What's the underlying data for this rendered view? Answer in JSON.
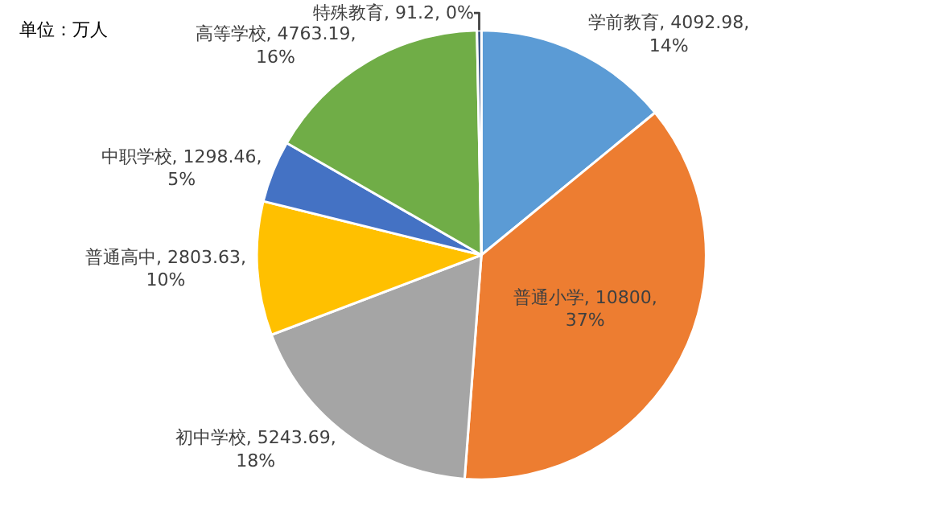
{
  "chart_data": {
    "type": "pie",
    "categories": [
      "学前教育",
      "普通小学",
      "初中学校",
      "普通高中",
      "中职学校",
      "高等学校",
      "特殊教育"
    ],
    "values": [
      4092.98,
      10800,
      5243.69,
      2803.63,
      1298.46,
      4763.19,
      91.2
    ],
    "value_labels": [
      "4092.98, 14%",
      "10800, 37%",
      "5243.69, 18%",
      "2803.63, 10%",
      "1298.46, 5%",
      "4763.19, 16%",
      "91.2, 0%"
    ],
    "colors": [
      "#5b9bd5",
      "#ed7d31",
      "#a5a5a5",
      "#ffc000",
      "#4472c4",
      "#70ad47",
      "#264478"
    ],
    "annotations": [
      "单位：万人"
    ],
    "legend": false
  }
}
